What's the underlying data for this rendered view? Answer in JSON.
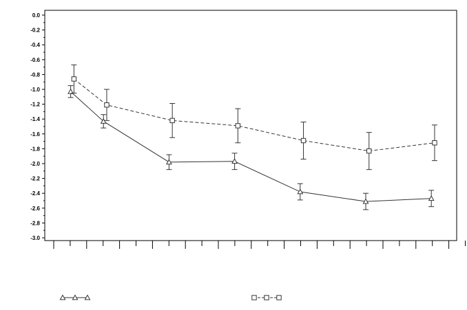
{
  "chart_data": {
    "type": "line",
    "title": "",
    "xlabel": "",
    "ylabel": "",
    "ylim": [
      -3.0,
      0.0
    ],
    "yticks": [
      "0.0",
      "-0.2",
      "-0.4",
      "-0.6",
      "-0.8",
      "-1.0",
      "-1.2",
      "-1.4",
      "-1.6",
      "-1.8",
      "-2.0",
      "-2.2",
      "-2.4",
      "-2.6",
      "-2.8",
      "-3.0"
    ],
    "grid": false,
    "legend": "bottom",
    "series": [
      {
        "marker": "triangle",
        "line_style": "solid",
        "color": "#333333",
        "points": [
          {
            "x": 1.0,
            "y": -1.03,
            "err": 0.08
          },
          {
            "x": 2.0,
            "y": -1.43,
            "err": 0.09
          },
          {
            "x": 4.0,
            "y": -1.98,
            "err": 0.1
          },
          {
            "x": 6.0,
            "y": -1.97,
            "err": 0.11
          },
          {
            "x": 8.0,
            "y": -2.38,
            "err": 0.11
          },
          {
            "x": 10.0,
            "y": -2.51,
            "err": 0.11
          },
          {
            "x": 12.0,
            "y": -2.47,
            "err": 0.11
          }
        ]
      },
      {
        "marker": "square",
        "line_style": "dashed",
        "color": "#333333",
        "points": [
          {
            "x": 1.1,
            "y": -0.86,
            "err": 0.19
          },
          {
            "x": 2.1,
            "y": -1.21,
            "err": 0.21
          },
          {
            "x": 4.1,
            "y": -1.42,
            "err": 0.23
          },
          {
            "x": 6.1,
            "y": -1.49,
            "err": 0.23
          },
          {
            "x": 8.1,
            "y": -1.69,
            "err": 0.25
          },
          {
            "x": 10.1,
            "y": -1.83,
            "err": 0.25
          },
          {
            "x": 12.1,
            "y": -1.72,
            "err": 0.24
          }
        ]
      }
    ]
  }
}
